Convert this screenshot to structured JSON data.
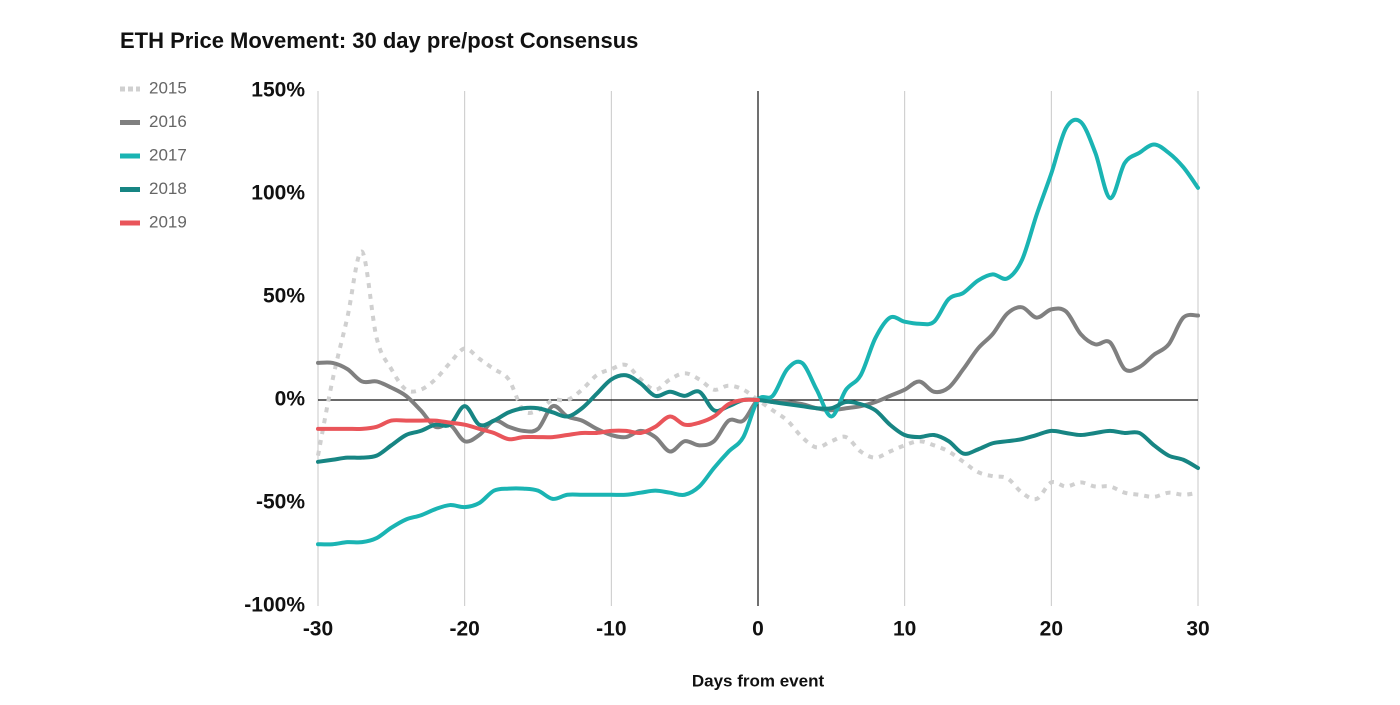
{
  "chart_data": {
    "type": "line",
    "title": "ETH Price Movement: 30 day pre/post Consensus",
    "x_label": "Days from event",
    "x": [
      -30,
      -29,
      -28,
      -27,
      -26,
      -25,
      -24,
      -23,
      -22,
      -21,
      -20,
      -19,
      -18,
      -17,
      -16,
      -15,
      -14,
      -13,
      -12,
      -11,
      -10,
      -9,
      -8,
      -7,
      -6,
      -5,
      -4,
      -3,
      -2,
      -1,
      0,
      1,
      2,
      3,
      4,
      5,
      6,
      7,
      8,
      9,
      10,
      11,
      12,
      13,
      14,
      15,
      16,
      17,
      18,
      19,
      20,
      21,
      22,
      23,
      24,
      25,
      26,
      27,
      28,
      29,
      30
    ],
    "xlim": [
      -30,
      30
    ],
    "xticks": [
      -30,
      -20,
      -10,
      0,
      10,
      20,
      30
    ],
    "ylim": [
      -100,
      150
    ],
    "yticks": [
      {
        "value": -100,
        "label": "-100%"
      },
      {
        "value": -50,
        "label": "-50%"
      },
      {
        "value": 0,
        "label": "0%"
      },
      {
        "value": 50,
        "label": "50%"
      },
      {
        "value": 100,
        "label": "100%"
      },
      {
        "value": 150,
        "label": "150%"
      }
    ],
    "xgrid": true,
    "legend": "top-left",
    "series": [
      {
        "name": "2015",
        "color": "#d0d0d0",
        "style": "dotted",
        "values": [
          -27,
          10,
          40,
          72,
          30,
          15,
          5,
          5,
          10,
          18,
          25,
          20,
          15,
          10,
          -5,
          -5,
          0,
          0,
          5,
          12,
          15,
          17,
          10,
          5,
          10,
          13,
          10,
          5,
          7,
          5,
          0,
          -5,
          -10,
          -18,
          -23,
          -20,
          -18,
          -25,
          -28,
          -25,
          -22,
          -20,
          -22,
          -25,
          -30,
          -35,
          -37,
          -38,
          -45,
          -48,
          -40,
          -42,
          -40,
          -42,
          -42,
          -45,
          -46,
          -47,
          -45,
          -46,
          -45
        ]
      },
      {
        "name": "2016",
        "color": "#808080",
        "style": "solid",
        "values": [
          18,
          18,
          15,
          9,
          9,
          6,
          2,
          -5,
          -13,
          -12,
          -20,
          -17,
          -10,
          -13,
          -15,
          -14,
          -3,
          -8,
          -10,
          -14,
          -17,
          -18,
          -15,
          -18,
          -25,
          -20,
          -22,
          -20,
          -10,
          -10,
          0,
          -1,
          -1,
          -2,
          -4,
          -5,
          -4,
          -3,
          -1,
          2,
          5,
          9,
          4,
          6,
          15,
          25,
          32,
          42,
          45,
          40,
          44,
          43,
          32,
          27,
          28,
          15,
          16,
          22,
          27,
          40,
          41
        ]
      },
      {
        "name": "2017",
        "color": "#1ab4b3",
        "style": "solid",
        "values": [
          -70,
          -70,
          -69,
          -69,
          -67,
          -62,
          -58,
          -56,
          -53,
          -51,
          -52,
          -50,
          -44,
          -43,
          -43,
          -44,
          -48,
          -46,
          -46,
          -46,
          -46,
          -46,
          -45,
          -44,
          -45,
          -46,
          -42,
          -33,
          -25,
          -18,
          0,
          2,
          15,
          18,
          5,
          -8,
          5,
          12,
          30,
          40,
          38,
          37,
          38,
          49,
          52,
          58,
          61,
          59,
          68,
          90,
          110,
          132,
          135,
          120,
          98,
          115,
          120,
          124,
          120,
          113,
          103
        ]
      },
      {
        "name": "2018",
        "color": "#178583",
        "style": "solid",
        "values": [
          -30,
          -29,
          -28,
          -28,
          -27,
          -22,
          -17,
          -15,
          -12,
          -12,
          -3,
          -12,
          -10,
          -6,
          -4,
          -4,
          -6,
          -8,
          -4,
          3,
          10,
          12,
          8,
          2,
          4,
          2,
          4,
          -5,
          -3,
          0,
          0,
          -1,
          -2,
          -3,
          -4,
          -4,
          -1,
          -2,
          -5,
          -12,
          -17,
          -18,
          -17,
          -20,
          -26,
          -24,
          -21,
          -20,
          -19,
          -17,
          -15,
          -16,
          -17,
          -16,
          -15,
          -16,
          -16,
          -22,
          -27,
          -29,
          -33
        ]
      },
      {
        "name": "2019",
        "color": "#e9555a",
        "style": "solid",
        "values": [
          -14,
          -14,
          -14,
          -14,
          -13,
          -10,
          -10,
          -10,
          -10,
          -11,
          -12,
          -14,
          -16,
          -19,
          -18,
          -18,
          -18,
          -17,
          -16,
          -16,
          -15,
          -15,
          -16,
          -13,
          -8,
          -12,
          -11,
          -8,
          -2,
          0,
          0,
          null,
          null,
          null,
          null,
          null,
          null,
          null,
          null,
          null,
          null,
          null,
          null,
          null,
          null,
          null,
          null,
          null,
          null,
          null,
          null,
          null,
          null,
          null,
          null,
          null,
          null,
          null,
          null,
          null,
          null
        ]
      }
    ]
  }
}
